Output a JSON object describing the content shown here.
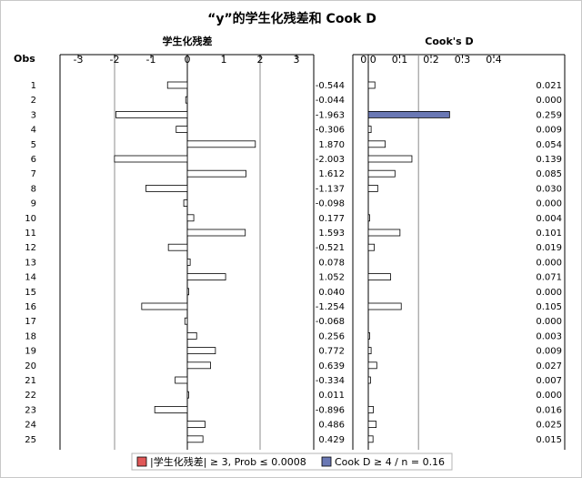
{
  "title": "“y”的学生化残差和 Cook D",
  "obs_header": "Obs",
  "panels": {
    "residual": {
      "header": "学生化残差",
      "ticks": [
        "-3",
        "-2",
        "-1",
        "0",
        "1",
        "2",
        "3"
      ]
    },
    "cook": {
      "header": "Cook's D",
      "ticks": [
        "0.0",
        "0.1",
        "0.2",
        "0.3",
        "0.4"
      ]
    }
  },
  "legend": [
    {
      "label": "|学生化残差| ≥ 3, Prob ≤ 0.0008",
      "color": "#e05858"
    },
    {
      "label": "Cook D ≥ 4 / n = 0.16",
      "color": "#6a78b4"
    }
  ],
  "chart_data": {
    "type": "bar",
    "orientation": "horizontal",
    "title": "“y”的学生化残差和 Cook D",
    "categories": [
      "1",
      "2",
      "3",
      "4",
      "5",
      "6",
      "7",
      "8",
      "9",
      "10",
      "11",
      "12",
      "13",
      "14",
      "15",
      "16",
      "17",
      "18",
      "19",
      "20",
      "21",
      "22",
      "23",
      "24",
      "25"
    ],
    "series": [
      {
        "name": "学生化残差",
        "values": [
          -0.544,
          -0.044,
          -1.963,
          -0.306,
          1.87,
          -2.003,
          1.612,
          -1.137,
          -0.098,
          0.177,
          1.593,
          -0.521,
          0.078,
          1.052,
          0.04,
          -1.254,
          -0.068,
          0.256,
          0.772,
          0.639,
          -0.334,
          0.011,
          -0.896,
          0.486,
          0.429
        ],
        "labels": [
          "-0.544",
          "-0.044",
          "-1.963",
          "-0.306",
          "1.870",
          "-2.003",
          "1.612",
          "-1.137",
          "-0.098",
          "0.177",
          "1.593",
          "-0.521",
          "0.078",
          "1.052",
          "0.040",
          "-1.254",
          "-0.068",
          "0.256",
          "0.772",
          "0.639",
          "-0.334",
          "0.011",
          "-0.896",
          "0.486",
          "0.429"
        ],
        "xlim": [
          -3,
          3
        ],
        "reference_lines": [
          -2,
          2
        ],
        "threshold": 3
      },
      {
        "name": "Cook's D",
        "values": [
          0.021,
          0.0,
          0.259,
          0.009,
          0.054,
          0.139,
          0.085,
          0.03,
          0.0,
          0.004,
          0.101,
          0.019,
          0.0,
          0.071,
          0.0,
          0.105,
          0.0,
          0.003,
          0.009,
          0.027,
          0.007,
          0.0,
          0.016,
          0.025,
          0.015
        ],
        "labels": [
          "0.021",
          "0.000",
          "0.259",
          "0.009",
          "0.054",
          "0.139",
          "0.085",
          "0.030",
          "0.000",
          "0.004",
          "0.101",
          "0.019",
          "0.000",
          "0.071",
          "0.000",
          "0.105",
          "0.000",
          "0.003",
          "0.009",
          "0.027",
          "0.007",
          "0.000",
          "0.016",
          "0.025",
          "0.015"
        ],
        "xlim": [
          0,
          0.4
        ],
        "reference_lines": [
          0.16
        ],
        "threshold": 0.16
      }
    ],
    "grid": false
  }
}
